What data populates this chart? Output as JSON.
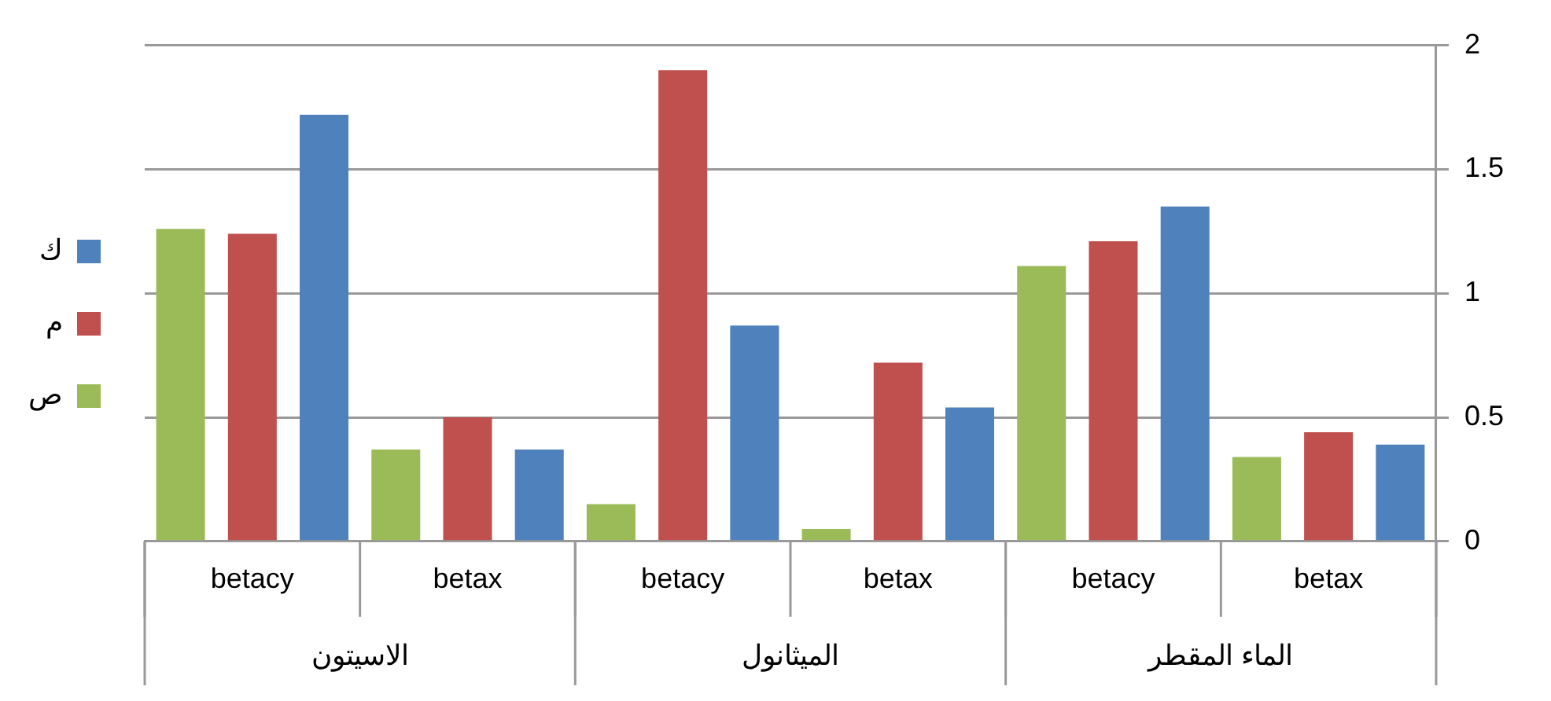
{
  "chart_data": {
    "type": "bar",
    "categories": [
      "betacy",
      "betax",
      "betacy",
      "betax",
      "betacy",
      "betax"
    ],
    "annotations": [
      "الاسيتون",
      "الميثانول",
      "الماء المقطر"
    ],
    "series": [
      {
        "name": "ص",
        "color": "#9bbb59",
        "values": [
          1.26,
          0.37,
          0.15,
          0.05,
          1.11,
          0.34
        ]
      },
      {
        "name": "م",
        "color": "#c0504d",
        "values": [
          1.24,
          0.5,
          1.9,
          0.72,
          1.21,
          0.44
        ]
      },
      {
        "name": "ك",
        "color": "#4f81bd",
        "values": [
          1.72,
          0.37,
          0.87,
          0.54,
          1.35,
          0.39
        ]
      }
    ],
    "ylim": [
      0,
      2
    ],
    "yticks": [
      0,
      0.5,
      1,
      1.5,
      2
    ],
    "grid": "y",
    "legend": "left"
  }
}
